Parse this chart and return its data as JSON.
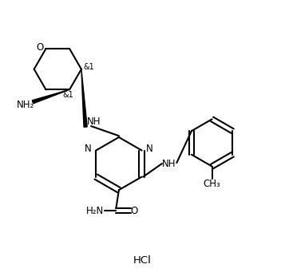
{
  "background_color": "#ffffff",
  "bond_color": "#000000",
  "lw": 1.5,
  "hcl_text": "HCl",
  "stereo1": "&1",
  "nh_text": "NH",
  "n_text": "N",
  "o_text": "O",
  "nh2_text": "NH₂",
  "h2n_text": "H₂N",
  "amide_o": "O",
  "ch3_text": "CH₃",
  "font_size": 8.5
}
